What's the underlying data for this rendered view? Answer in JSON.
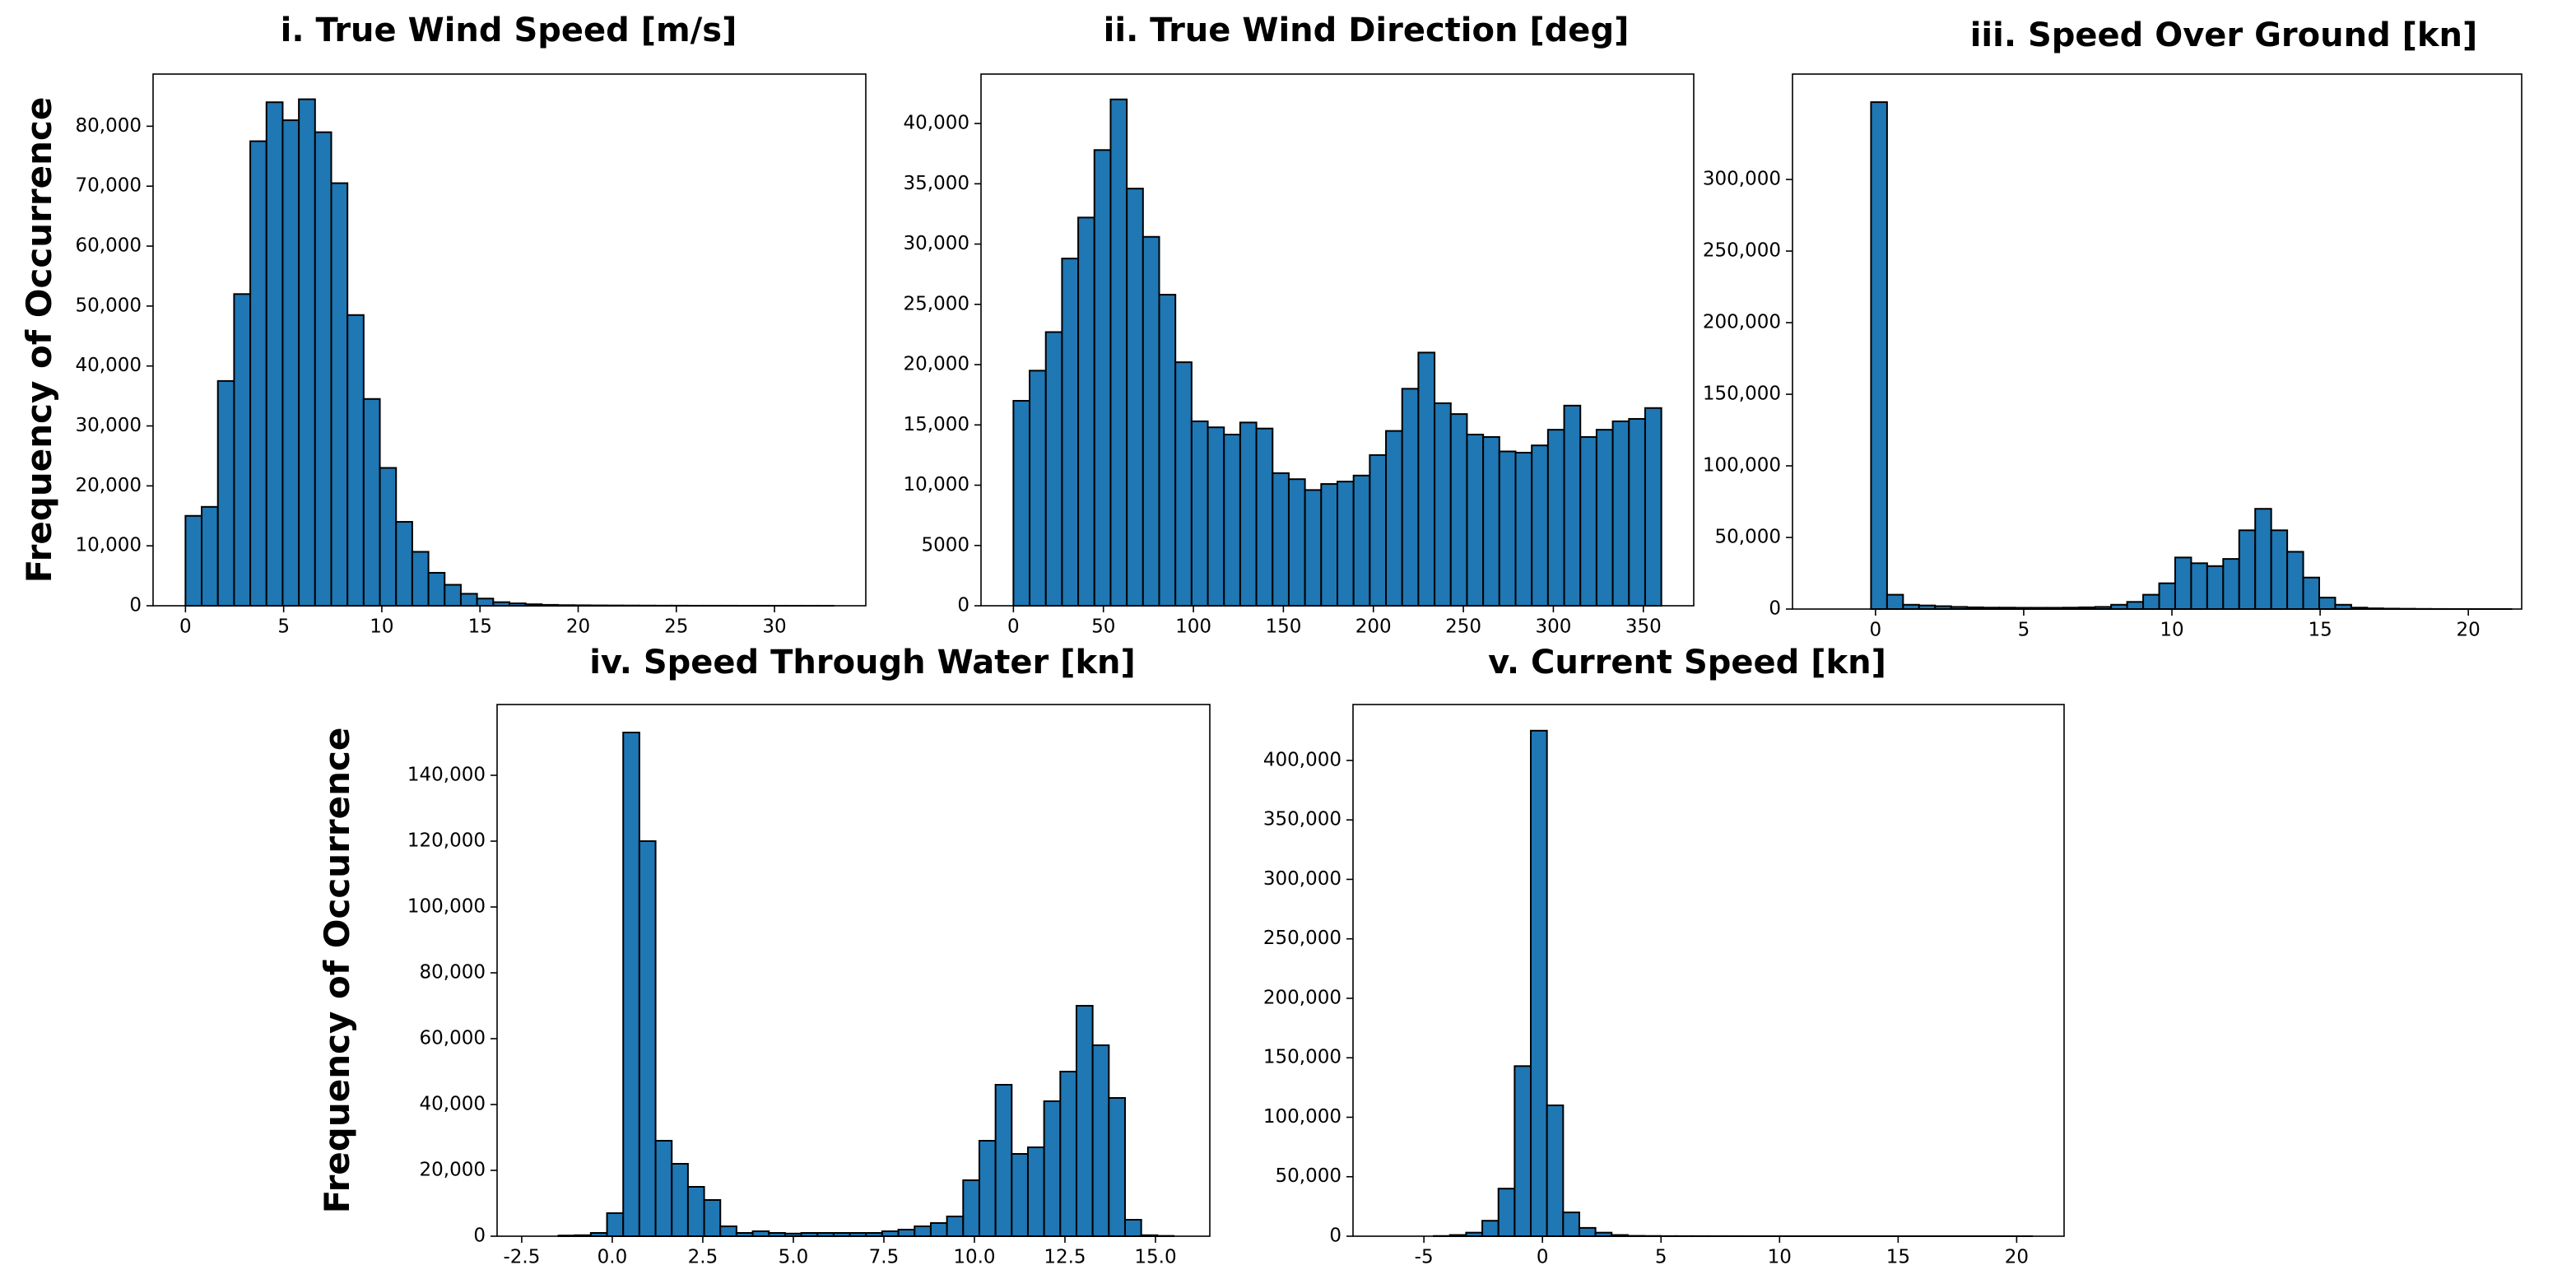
{
  "chart_data": [
    {
      "type": "histogram",
      "title": "i. True Wind Speed [m/s]",
      "ylabel": "Frequency of Occurrence",
      "color": "#1f77b4",
      "bins": [
        0,
        0.825,
        1.65,
        2.475,
        3.3,
        4.125,
        4.95,
        5.775,
        6.6,
        7.425,
        8.25,
        9.075,
        9.9,
        10.725,
        11.55,
        12.375,
        13.2,
        14.025,
        14.85,
        15.675,
        16.5,
        17.325,
        18.15,
        18.975,
        19.8,
        20.625,
        21.45,
        22.275,
        23.1,
        23.925,
        24.75,
        25.575,
        26.4,
        27.225,
        28.05,
        28.875,
        29.7,
        30.525,
        31.35,
        32.175,
        33
      ],
      "values": [
        15000,
        16500,
        37500,
        52000,
        77500,
        84000,
        81000,
        84500,
        79000,
        70500,
        48500,
        34500,
        23000,
        14000,
        9000,
        5500,
        3500,
        2000,
        1200,
        600,
        400,
        250,
        150,
        100,
        80,
        60,
        50,
        40,
        30,
        20,
        20,
        10,
        10,
        10,
        5,
        5,
        5,
        5,
        5,
        5
      ],
      "xlim": [
        -1.65,
        34.65
      ],
      "ylim": [
        0,
        88700
      ],
      "xticks": [
        0,
        5,
        10,
        15,
        20,
        25,
        30
      ],
      "yticks": [
        0,
        {
          "value": 10000,
          "label": "10,000"
        },
        {
          "value": 20000,
          "label": "20,000"
        },
        {
          "value": 30000,
          "label": "30,000"
        },
        {
          "value": 40000,
          "label": "40,000"
        },
        {
          "value": 50000,
          "label": "50,000"
        },
        {
          "value": 60000,
          "label": "60,000"
        },
        {
          "value": 70000,
          "label": "70,000"
        },
        {
          "value": 80000,
          "label": "80,000"
        }
      ]
    },
    {
      "type": "histogram",
      "title": "ii. True Wind Direction [deg]",
      "color": "#1f77b4",
      "bins": [
        0,
        9,
        18,
        27,
        36,
        45,
        54,
        63,
        72,
        81,
        90,
        99,
        108,
        117,
        126,
        135,
        144,
        153,
        162,
        171,
        180,
        189,
        198,
        207,
        216,
        225,
        234,
        243,
        252,
        261,
        270,
        279,
        288,
        297,
        306,
        315,
        324,
        333,
        342,
        351,
        360
      ],
      "values": [
        17000,
        19500,
        22700,
        28800,
        32200,
        37800,
        42000,
        34600,
        30600,
        25800,
        20200,
        15300,
        14800,
        14200,
        15200,
        14700,
        11000,
        10500,
        9600,
        10100,
        10300,
        10800,
        12500,
        14500,
        18000,
        21000,
        16800,
        15900,
        14200,
        14000,
        12800,
        12700,
        13300,
        14600,
        16600,
        14000,
        14600,
        15300,
        15500,
        16400
      ],
      "xlim": [
        -18,
        378
      ],
      "ylim": [
        0,
        44100
      ],
      "xticks": [
        0,
        50,
        100,
        150,
        200,
        250,
        300,
        350
      ],
      "yticks": [
        0,
        5000,
        {
          "value": 10000,
          "label": "10,000"
        },
        {
          "value": 15000,
          "label": "15,000"
        },
        {
          "value": 20000,
          "label": "20,000"
        },
        {
          "value": 25000,
          "label": "25,000"
        },
        {
          "value": 30000,
          "label": "30,000"
        },
        {
          "value": 35000,
          "label": "35,000"
        },
        {
          "value": 40000,
          "label": "40,000"
        }
      ]
    },
    {
      "type": "histogram",
      "title": "iii. Speed Over Ground [kn]",
      "color": "#1f77b4",
      "bins": [
        -0.15,
        0.39,
        0.93,
        1.47,
        2.01,
        2.55,
        3.09,
        3.63,
        4.17,
        4.71,
        5.25,
        5.79,
        6.33,
        6.87,
        7.41,
        7.95,
        8.49,
        9.03,
        9.57,
        10.11,
        10.65,
        11.19,
        11.73,
        12.27,
        12.81,
        13.35,
        13.89,
        14.43,
        14.97,
        15.51,
        16.05,
        16.59,
        17.13,
        17.67,
        18.21,
        18.75,
        19.29,
        19.83,
        20.37,
        20.91,
        21.45
      ],
      "values": [
        354000,
        10000,
        3000,
        2500,
        2000,
        1500,
        1200,
        1000,
        1000,
        900,
        900,
        900,
        1000,
        1200,
        1500,
        3000,
        5000,
        10000,
        18000,
        36000,
        32000,
        30000,
        35000,
        55000,
        70000,
        55000,
        40000,
        22000,
        8000,
        3000,
        1000,
        500,
        300,
        200,
        100,
        50,
        30,
        20,
        10,
        10
      ],
      "xlim": [
        -2.8,
        21.8
      ],
      "ylim": [
        0,
        373600
      ],
      "xticks": [
        0,
        5,
        10,
        15,
        20
      ],
      "yticks": [
        0,
        {
          "value": 50000,
          "label": "50,000"
        },
        {
          "value": 100000,
          "label": "100,000"
        },
        {
          "value": 150000,
          "label": "150,000"
        },
        {
          "value": 200000,
          "label": "200,000"
        },
        {
          "value": 250000,
          "label": "250,000"
        },
        {
          "value": 300000,
          "label": "300,000"
        }
      ]
    },
    {
      "type": "histogram",
      "title": "iv. Speed Through Water [kn]",
      "ylabel": "Frequency of Occurrence",
      "color": "#1f77b4",
      "bins": [
        -2.38,
        -1.933,
        -1.486,
        -1.039,
        -0.592,
        -0.145,
        0.302,
        0.749,
        1.196,
        1.643,
        2.09,
        2.537,
        2.984,
        3.431,
        3.878,
        4.325,
        4.772,
        5.219,
        5.666,
        6.113,
        6.56,
        7.007,
        7.454,
        7.901,
        8.348,
        8.795,
        9.242,
        9.689,
        10.136,
        10.583,
        11.03,
        11.477,
        11.924,
        12.371,
        12.818,
        13.265,
        13.712,
        14.159,
        14.606,
        15.053,
        15.5
      ],
      "values": [
        0,
        0,
        200,
        300,
        1000,
        7000,
        153000,
        120000,
        29000,
        22000,
        15000,
        11000,
        3000,
        1000,
        1500,
        1000,
        800,
        1000,
        1000,
        1000,
        1000,
        1000,
        1500,
        2000,
        3000,
        4000,
        6000,
        17000,
        29000,
        46000,
        25000,
        27000,
        41000,
        50000,
        70000,
        58000,
        42000,
        5000,
        300,
        100
      ],
      "xlim": [
        -3.18,
        16.5
      ],
      "ylim": [
        0,
        161500
      ],
      "xticks": [
        -2.5,
        {
          "value": 0,
          "label": "0.0"
        },
        2.5,
        {
          "value": 5,
          "label": "5.0"
        },
        7.5,
        {
          "value": 10,
          "label": "10.0"
        },
        12.5,
        {
          "value": 15,
          "label": "15.0"
        }
      ],
      "yticks": [
        0,
        {
          "value": 20000,
          "label": "20,000"
        },
        {
          "value": 40000,
          "label": "40,000"
        },
        {
          "value": 60000,
          "label": "60,000"
        },
        {
          "value": 80000,
          "label": "80,000"
        },
        {
          "value": 100000,
          "label": "100,000"
        },
        {
          "value": 120000,
          "label": "120,000"
        },
        {
          "value": 140000,
          "label": "140,000"
        }
      ]
    },
    {
      "type": "histogram",
      "title": "v. Current Speed [kn]",
      "color": "#1f77b4",
      "bins": [
        -6.63,
        -5.948,
        -5.266,
        -4.584,
        -3.902,
        -3.22,
        -2.538,
        -1.856,
        -1.174,
        -0.492,
        0.19,
        0.872,
        1.554,
        2.236,
        2.918,
        3.6,
        4.282,
        4.964,
        5.646,
        6.328,
        7.01,
        7.692,
        8.374,
        9.056,
        9.738,
        10.42,
        11.102,
        11.784,
        12.466,
        13.148,
        13.83,
        14.512,
        15.194,
        15.876,
        16.558,
        17.24,
        17.922,
        18.604,
        19.286,
        19.968,
        20.65
      ],
      "values": [
        0,
        0,
        0,
        200,
        1000,
        3000,
        13000,
        40000,
        143000,
        425000,
        110000,
        20000,
        7000,
        3000,
        1000,
        300,
        200,
        100,
        80,
        60,
        50,
        40,
        30,
        20,
        20,
        10,
        10,
        10,
        10,
        10,
        5,
        5,
        5,
        5,
        5,
        5,
        5,
        5,
        5,
        5
      ],
      "xlim": [
        -7.99,
        22
      ],
      "ylim": [
        0,
        447000
      ],
      "xticks": [
        -5,
        0,
        5,
        10,
        15,
        20
      ],
      "yticks": [
        0,
        {
          "value": 50000,
          "label": "50,000"
        },
        {
          "value": 100000,
          "label": "100,000"
        },
        {
          "value": 150000,
          "label": "150,000"
        },
        {
          "value": 200000,
          "label": "200,000"
        },
        {
          "value": 250000,
          "label": "250,000"
        },
        {
          "value": 300000,
          "label": "300,000"
        },
        {
          "value": 350000,
          "label": "350,000"
        },
        {
          "value": 400000,
          "label": "400,000"
        }
      ]
    }
  ]
}
